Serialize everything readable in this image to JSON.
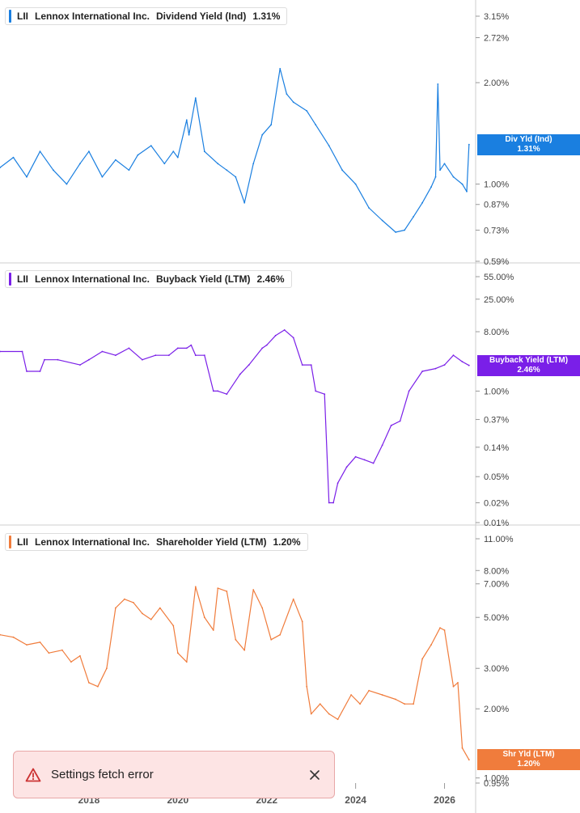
{
  "chart_data": [
    {
      "type": "line",
      "ticker": "LII",
      "company": "Lennox International Inc.",
      "metric": "Dividend Yield (Ind)",
      "current_value": "1.31%",
      "tag_label": "Div Yld (Ind)",
      "color": "#1a7fe0",
      "yscale": "log",
      "yticks": [
        "3.15%",
        "2.72%",
        "2.00%",
        "1.00%",
        "0.87%",
        "0.73%",
        "0.59%"
      ],
      "ylim": [
        0.59,
        3.15
      ],
      "series": [
        {
          "x": [
            2016.0,
            2016.3,
            2016.6,
            2016.9,
            2017.2,
            2017.5,
            2017.8,
            2018.0,
            2018.3,
            2018.6,
            2018.9,
            2019.1,
            2019.4,
            2019.7,
            2019.9,
            2020.0,
            2020.2,
            2020.25,
            2020.4,
            2020.6,
            2020.9,
            2021.1,
            2021.3,
            2021.5,
            2021.7,
            2021.9,
            2022.1,
            2022.3,
            2022.45,
            2022.6,
            2022.9,
            2023.1,
            2023.4,
            2023.7,
            2024.0,
            2024.3,
            2024.6,
            2024.9,
            2025.1,
            2025.3,
            2025.5,
            2025.7,
            2025.8,
            2025.85,
            2025.9,
            2026.0,
            2026.2,
            2026.4,
            2026.5,
            2026.55
          ],
          "y": [
            1.12,
            1.2,
            1.05,
            1.25,
            1.1,
            1.0,
            1.15,
            1.25,
            1.05,
            1.18,
            1.1,
            1.22,
            1.3,
            1.15,
            1.25,
            1.2,
            1.55,
            1.4,
            1.8,
            1.25,
            1.15,
            1.1,
            1.05,
            0.88,
            1.15,
            1.4,
            1.5,
            2.2,
            1.85,
            1.75,
            1.65,
            1.5,
            1.3,
            1.1,
            1.0,
            0.85,
            0.78,
            0.72,
            0.73,
            0.8,
            0.88,
            0.98,
            1.05,
            1.98,
            1.1,
            1.15,
            1.05,
            1.0,
            0.95,
            1.31
          ]
        }
      ]
    },
    {
      "type": "line",
      "ticker": "LII",
      "company": "Lennox International Inc.",
      "metric": "Buyback Yield (LTM)",
      "current_value": "2.46%",
      "tag_label": "Buyback Yield (LTM)",
      "color": "#7a1fe8",
      "yscale": "log",
      "yticks": [
        "55.00%",
        "25.00%",
        "8.00%",
        "1.00%",
        "0.37%",
        "0.14%",
        "0.05%",
        "0.02%",
        "0.01%"
      ],
      "ylim": [
        0.01,
        55.0
      ],
      "series": [
        {
          "x": [
            2016.0,
            2016.5,
            2016.6,
            2016.9,
            2017.0,
            2017.3,
            2017.8,
            2018.0,
            2018.3,
            2018.6,
            2018.9,
            2019.2,
            2019.5,
            2019.8,
            2020.0,
            2020.2,
            2020.3,
            2020.4,
            2020.6,
            2020.8,
            2020.9,
            2021.1,
            2021.4,
            2021.6,
            2021.9,
            2022.0,
            2022.2,
            2022.4,
            2022.6,
            2022.8,
            2023.0,
            2023.1,
            2023.3,
            2023.4,
            2023.5,
            2023.6,
            2023.8,
            2024.0,
            2024.2,
            2024.4,
            2024.6,
            2024.8,
            2025.0,
            2025.2,
            2025.5,
            2025.8,
            2026.0,
            2026.2,
            2026.4,
            2026.55
          ],
          "y": [
            4.0,
            4.0,
            2.0,
            2.0,
            3.0,
            3.0,
            2.5,
            3.0,
            4.0,
            3.5,
            4.5,
            3.0,
            3.5,
            3.5,
            4.5,
            4.5,
            5.0,
            3.5,
            3.5,
            1.0,
            1.0,
            0.9,
            1.8,
            2.5,
            4.5,
            5.0,
            7.0,
            8.5,
            6.5,
            2.5,
            2.5,
            1.0,
            0.9,
            0.02,
            0.02,
            0.04,
            0.07,
            0.1,
            0.09,
            0.08,
            0.15,
            0.3,
            0.35,
            1.0,
            2.0,
            2.2,
            2.5,
            3.5,
            2.8,
            2.46
          ]
        }
      ]
    },
    {
      "type": "line",
      "ticker": "LII",
      "company": "Lennox International Inc.",
      "metric": "Shareholder Yield (LTM)",
      "current_value": "1.20%",
      "tag_label": "Shr Yld (LTM)",
      "color": "#f07c3c",
      "yscale": "log",
      "yticks": [
        "11.00%",
        "8.00%",
        "7.00%",
        "5.00%",
        "3.00%",
        "2.00%",
        "1.00%",
        "0.95%"
      ],
      "ylim": [
        0.95,
        11.0
      ],
      "series": [
        {
          "x": [
            2016.0,
            2016.3,
            2016.6,
            2016.9,
            2017.1,
            2017.4,
            2017.6,
            2017.8,
            2018.0,
            2018.2,
            2018.4,
            2018.6,
            2018.8,
            2019.0,
            2019.2,
            2019.4,
            2019.6,
            2019.9,
            2020.0,
            2020.2,
            2020.4,
            2020.6,
            2020.8,
            2020.9,
            2021.1,
            2021.3,
            2021.5,
            2021.7,
            2021.9,
            2022.1,
            2022.3,
            2022.6,
            2022.8,
            2022.9,
            2023.0,
            2023.2,
            2023.4,
            2023.6,
            2023.9,
            2024.1,
            2024.3,
            2024.6,
            2024.9,
            2025.1,
            2025.3,
            2025.5,
            2025.7,
            2025.9,
            2026.0,
            2026.2,
            2026.3,
            2026.4,
            2026.55
          ],
          "y": [
            4.2,
            4.1,
            3.8,
            3.9,
            3.5,
            3.6,
            3.2,
            3.4,
            2.6,
            2.5,
            3.0,
            5.5,
            6.0,
            5.8,
            5.2,
            4.9,
            5.5,
            4.6,
            3.5,
            3.2,
            6.8,
            5.0,
            4.4,
            6.7,
            6.5,
            4.0,
            3.6,
            6.6,
            5.5,
            4.0,
            4.2,
            6.0,
            4.8,
            2.5,
            1.9,
            2.1,
            1.9,
            1.8,
            2.3,
            2.1,
            2.4,
            2.3,
            2.2,
            2.1,
            2.1,
            3.3,
            3.8,
            4.5,
            4.4,
            2.5,
            2.6,
            1.35,
            1.2
          ]
        }
      ]
    }
  ],
  "x_axis": {
    "years": [
      {
        "label": "2018",
        "value": 2018
      },
      {
        "label": "2020",
        "value": 2020
      },
      {
        "label": "2022",
        "value": 2022
      },
      {
        "label": "2024",
        "value": 2024
      },
      {
        "label": "2026",
        "value": 2026
      }
    ],
    "range": [
      2016.0,
      2026.7
    ]
  },
  "toast": {
    "icon": "warning-triangle-icon",
    "message": "Settings fetch error",
    "close_icon": "close-icon",
    "background": "#fde4e4",
    "accent": "#cc3333"
  }
}
